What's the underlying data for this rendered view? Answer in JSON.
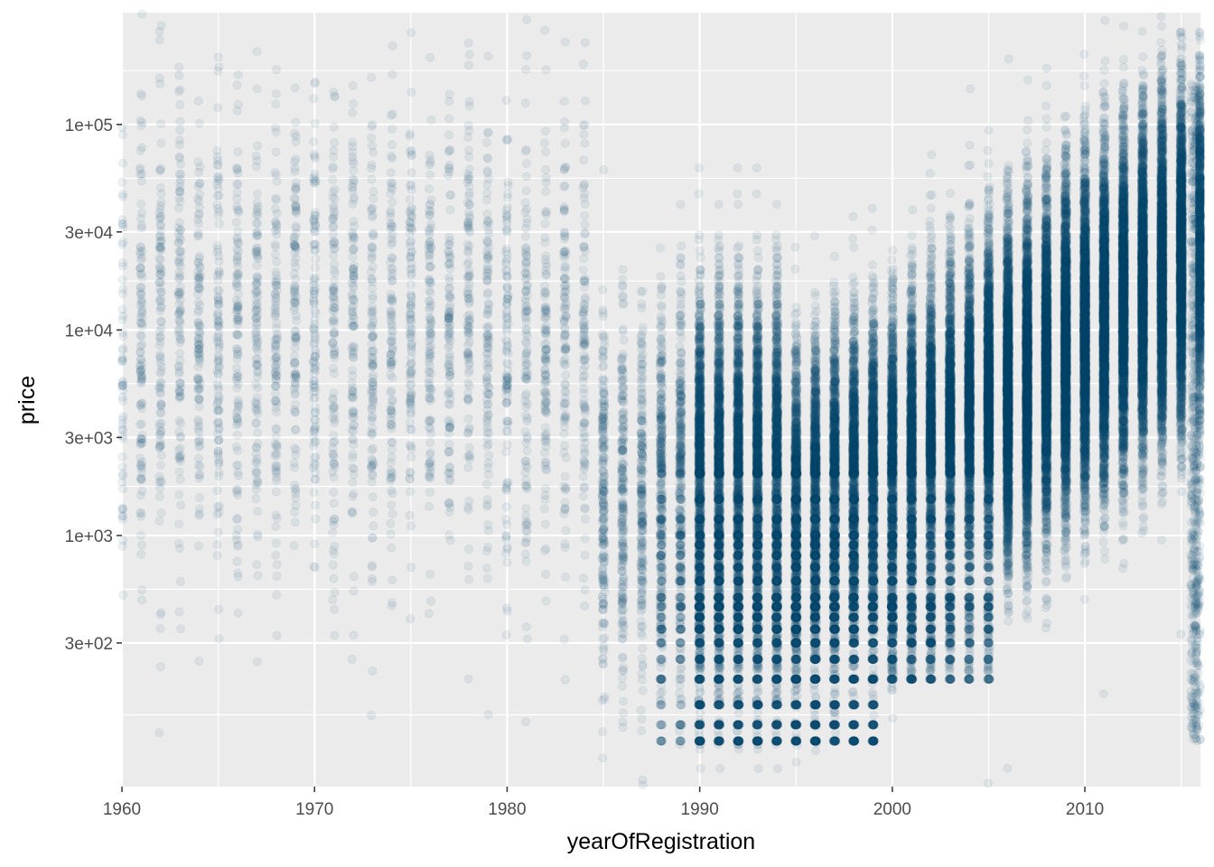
{
  "chart_data": {
    "type": "scatter",
    "title": "",
    "xlabel": "yearOfRegistration",
    "ylabel": "price",
    "x_scale": "linear",
    "y_scale": "log10",
    "xlim": [
      1960,
      2016
    ],
    "ylim": [
      60,
      350000
    ],
    "x_ticks": [
      {
        "value": 1960,
        "label": "1960"
      },
      {
        "value": 1970,
        "label": "1970"
      },
      {
        "value": 1980,
        "label": "1980"
      },
      {
        "value": 1990,
        "label": "1990"
      },
      {
        "value": 2000,
        "label": "2000"
      },
      {
        "value": 2010,
        "label": "2010"
      }
    ],
    "y_ticks": [
      {
        "value": 300,
        "label": "3e+02"
      },
      {
        "value": 1000,
        "label": "1e+03"
      },
      {
        "value": 3000,
        "label": "3e+03"
      },
      {
        "value": 10000,
        "label": "1e+04"
      },
      {
        "value": 30000,
        "label": "3e+04"
      },
      {
        "value": 100000,
        "label": "1e+05"
      }
    ],
    "grid": true,
    "legend": "none",
    "point_color": "#0b5170",
    "panel_color": "#ebebeb",
    "grid_color": "#ffffff",
    "point_alpha": 0.08,
    "point_summary": [
      {
        "x_range": [
          1960,
          1985
        ],
        "density": "sparse",
        "median_price": 8000
      },
      {
        "x_range": [
          1985,
          1990
        ],
        "density": "moderate",
        "median_price": 3000
      },
      {
        "x_range": [
          1990,
          2000
        ],
        "density": "dense",
        "price_band": [
          100,
          5000
        ]
      },
      {
        "x_range": [
          2000,
          2005
        ],
        "density": "dense",
        "price_band": [
          300,
          15000
        ]
      },
      {
        "x_range": [
          2005,
          2016
        ],
        "density": "very dense",
        "price_band": [
          2000,
          60000
        ]
      }
    ]
  }
}
